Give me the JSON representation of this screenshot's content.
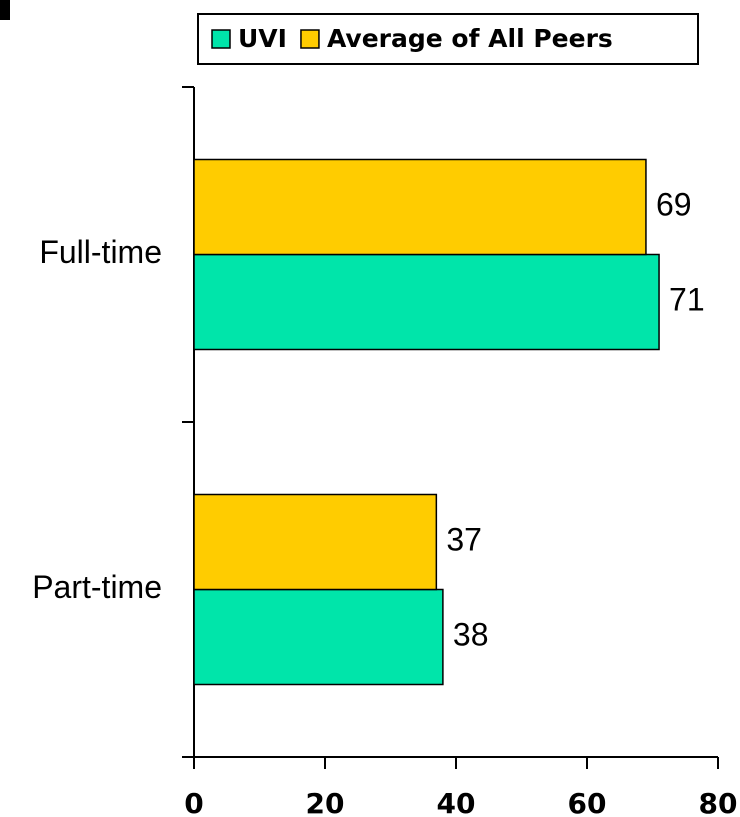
{
  "chart_data": {
    "type": "barh",
    "categories": [
      "Full-time",
      "Part-time"
    ],
    "series": [
      {
        "name": "UVI",
        "color": "#00e5aa",
        "values": [
          71,
          38
        ]
      },
      {
        "name": "Average of All Peers",
        "color": "#ffcc00",
        "values": [
          69,
          37
        ]
      }
    ],
    "xlim": [
      0,
      80
    ],
    "xticks": [
      0,
      20,
      40,
      60,
      80
    ],
    "legend": "top",
    "grid": false
  }
}
